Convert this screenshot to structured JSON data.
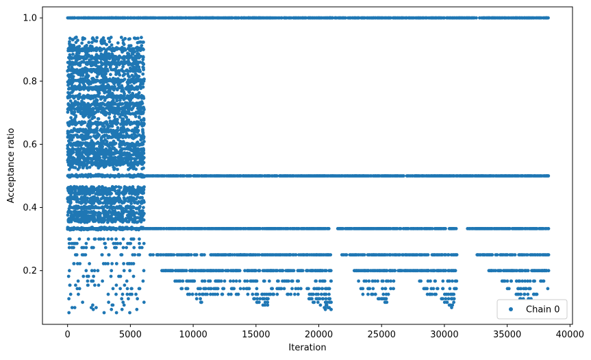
{
  "chart_data": {
    "type": "scatter",
    "title": "",
    "xlabel": "Iteration",
    "ylabel": "Acceptance ratio",
    "xlim": [
      -2000,
      40200
    ],
    "ylim": [
      0.03,
      1.035
    ],
    "x_ticks": [
      0,
      5000,
      10000,
      15000,
      20000,
      25000,
      30000,
      35000,
      40000
    ],
    "x_tick_labels": [
      "0",
      "5000",
      "10000",
      "15000",
      "20000",
      "25000",
      "30000",
      "35000",
      "40000"
    ],
    "y_ticks": [
      0.2,
      0.4,
      0.6,
      0.8,
      1.0
    ],
    "y_tick_labels": [
      "0.2",
      "0.4",
      "0.6",
      "0.8",
      "1.0"
    ],
    "grid": false,
    "legend_position": "bottom-right",
    "marker_color": "#1f77b4",
    "series": [
      {
        "name": "Chain 0",
        "x_range": [
          0,
          38300
        ],
        "levels": [
          {
            "y": 1.0,
            "x_ranges": [
              [
                0,
                38300
              ]
            ]
          },
          {
            "y": 0.5,
            "x_ranges": [
              [
                0,
                38300
              ]
            ]
          },
          {
            "y": 0.333,
            "x_ranges": [
              [
                0,
                21000
              ],
              [
                21500,
                31000
              ],
              [
                31700,
                38300
              ]
            ]
          },
          {
            "y": 0.25,
            "x_ranges": [
              [
                6500,
                21000
              ],
              [
                21800,
                31000
              ],
              [
                32500,
                38300
              ]
            ]
          },
          {
            "y": 0.2,
            "x_ranges": [
              [
                7500,
                21000
              ],
              [
                22800,
                30900
              ],
              [
                33500,
                38300
              ]
            ]
          },
          {
            "y": 0.167,
            "x_ranges": [
              [
                8500,
                21000
              ],
              [
                23000,
                26000
              ],
              [
                27500,
                31000
              ],
              [
                34500,
                38300
              ]
            ]
          },
          {
            "y": 0.143,
            "x_ranges": [
              [
                9000,
                21000
              ],
              [
                23200,
                26000
              ],
              [
                28000,
                31000
              ],
              [
                35000,
                38300
              ]
            ]
          },
          {
            "y": 0.125,
            "x_ranges": [
              [
                9500,
                21000
              ],
              [
                23500,
                25800
              ],
              [
                28500,
                30900
              ],
              [
                35500,
                37500
              ]
            ]
          },
          {
            "y": 0.111,
            "x_ranges": [
              [
                10000,
                11000
              ],
              [
                14500,
                16000
              ],
              [
                19000,
                21000
              ],
              [
                24500,
                25500
              ],
              [
                29500,
                30800
              ],
              [
                35800,
                37000
              ]
            ]
          },
          {
            "y": 0.1,
            "x_ranges": [
              [
                10500,
                11000
              ],
              [
                15000,
                16000
              ],
              [
                19500,
                21000
              ],
              [
                25000,
                25500
              ],
              [
                30000,
                30800
              ]
            ]
          },
          {
            "y": 0.091,
            "x_ranges": [
              [
                15500,
                16000
              ],
              [
                20000,
                21000
              ],
              [
                30200,
                30700
              ]
            ]
          },
          {
            "y": 0.083,
            "x_ranges": [
              [
                20300,
                21000
              ],
              [
                30300,
                30600
              ]
            ]
          },
          {
            "y": 0.077,
            "x_ranges": [
              [
                20500,
                21000
              ]
            ]
          }
        ],
        "early_segment": {
          "x_range": [
            0,
            6100
          ],
          "dense_levels": [
            0.9,
            0.875,
            0.857,
            0.833,
            0.8,
            0.778,
            0.75,
            0.727,
            0.714,
            0.7,
            0.667,
            0.643,
            0.625,
            0.6,
            0.583,
            0.571,
            0.556,
            0.545,
            0.538,
            0.5,
            0.462,
            0.455,
            0.444,
            0.429,
            0.417,
            0.4,
            0.385,
            0.375,
            0.364,
            0.357,
            0.333
          ],
          "sparse_levels": [
            0.3,
            0.286,
            0.273,
            0.25,
            0.222,
            0.2,
            0.182,
            0.167,
            0.154,
            0.143,
            0.125,
            0.111,
            0.1,
            0.091,
            0.083,
            0.077,
            0.067
          ],
          "y_spread_max": 0.94
        }
      }
    ]
  }
}
